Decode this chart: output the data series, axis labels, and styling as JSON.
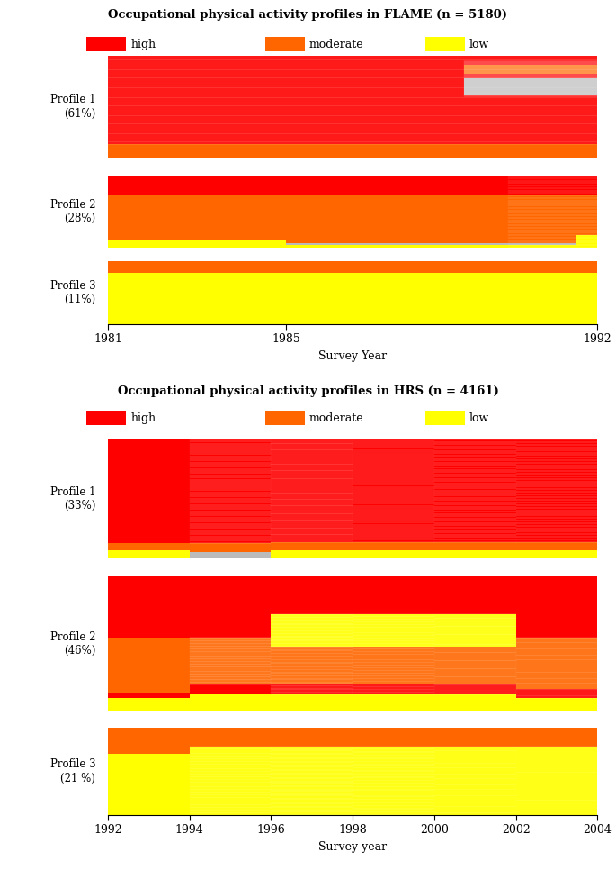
{
  "flame_title": "Occupational physical activity profiles in FLAME (n = 5180)",
  "flame_xlabel": "Survey Year",
  "flame_xticks": [
    1981,
    1985,
    1992
  ],
  "flame_timepoints": [
    1981,
    1985,
    1992
  ],
  "hrs_title": "Occupational physical activity profiles in HRS (n = 4161)",
  "hrs_xlabel": "Survey year",
  "hrs_xticks": [
    1992,
    1994,
    1996,
    1998,
    2000,
    2002,
    2004
  ],
  "hrs_timepoints": [
    1992,
    1994,
    1996,
    1998,
    2000,
    2002,
    2004
  ],
  "color_high": "#FF0000",
  "color_moderate": "#FF6600",
  "color_low": "#FFFF00",
  "color_missing": "#bbbbbb",
  "bg_color": "#ffffff",
  "legend_colors": [
    "#FF0000",
    "#FF6600",
    "#FFFF00"
  ],
  "legend_labels": [
    "high",
    "moderate",
    "low"
  ],
  "flame_labels": [
    "Profile 1\n(61%)",
    "Profile 2\n(28%)",
    "Profile 3\n(11%)"
  ],
  "hrs_labels": [
    "Profile 1\n(33%)",
    "Profile 2\n(46%)",
    "Profile 3\n(21 %)"
  ],
  "title_fontsize": 9.5,
  "label_fontsize": 8.5,
  "tick_fontsize": 9,
  "legend_fontsize": 9
}
